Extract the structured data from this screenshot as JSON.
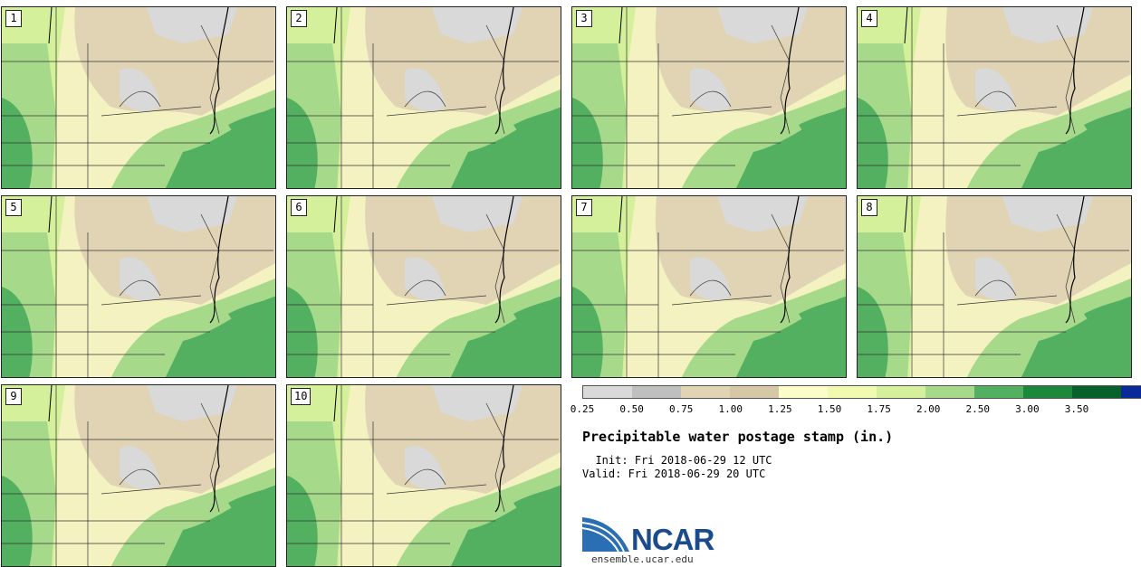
{
  "stamps": [
    {
      "label": "1"
    },
    {
      "label": "2"
    },
    {
      "label": "3"
    },
    {
      "label": "4"
    },
    {
      "label": "5"
    },
    {
      "label": "6"
    },
    {
      "label": "7"
    },
    {
      "label": "8"
    },
    {
      "label": "9"
    },
    {
      "label": "10"
    }
  ],
  "legend": {
    "title": "Precipitable water postage stamp (in.)",
    "init_line": "  Init: Fri 2018-06-29 12 UTC",
    "valid_line": "Valid: Fri 2018-06-29 20 UTC",
    "colors": [
      "#d9d9d9",
      "#bfbfbf",
      "#e0d4b5",
      "#d6c8a6",
      "#fcfcc8",
      "#f0fbb0",
      "#d4f09a",
      "#a6d98a",
      "#52b060",
      "#1a8a3a",
      "#08602a",
      "#0a2a9a"
    ],
    "tick_labels": [
      "0.25",
      "0.50",
      "0.75",
      "1.00",
      "1.25",
      "1.50",
      "1.75",
      "2.00",
      "2.50",
      "3.00",
      "3.50"
    ]
  },
  "logo": {
    "name": "NCAR",
    "url": "ensemble.ucar.edu"
  }
}
